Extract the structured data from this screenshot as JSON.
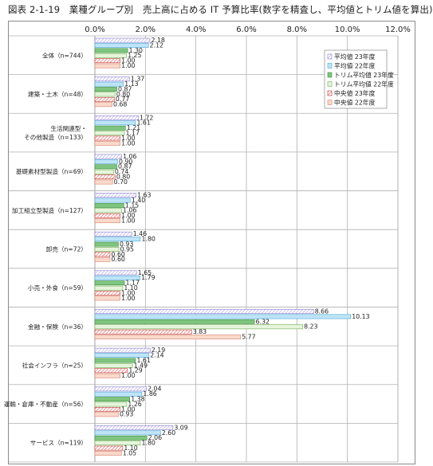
{
  "figure_title": "図表 2-1-19　業種グループ別　売上高に占める IT 予算比率(数字を精査し、平均値とトリム値を算出)",
  "colors": {
    "avg_2023": "#b3a6e6",
    "avg_2022": "#bfe4f7",
    "trim_2023": "#7fc47f",
    "trim_2022": "#e6f5dc",
    "median_2023": "#e85a5a",
    "median_2022": "#f9d9cc",
    "grid": "#b0b0b0"
  },
  "chart_data": {
    "type": "bar",
    "orientation": "horizontal",
    "xlim": [
      0,
      12
    ],
    "ticks": [
      "0.0%",
      "2.0%",
      "4.0%",
      "6.0%",
      "8.0%",
      "10.0%",
      "12.0%"
    ],
    "tick_values": [
      0,
      2,
      4,
      6,
      8,
      10,
      12
    ],
    "grid": true,
    "legend_position": "top-right",
    "categories": [
      "全体（n=744）",
      "建築・土木（n=48）",
      "生活関連型・その他製造（n=133）",
      "基礎素材型製造（n=69）",
      "加工組立型製造（n=127）",
      "卸売（n=72）",
      "小売・外食（n=59）",
      "金融・保険（n=36）",
      "社会インフラ（n=25）",
      "運輸・倉庫・不動産（n=56）",
      "サービス（n=119）"
    ],
    "category_lines": [
      [
        "全体（n=744）"
      ],
      [
        "建築・土木（n=48）"
      ],
      [
        "生活関連型・",
        "その他製造（n=133）"
      ],
      [
        "基礎素材型製造（n=69）"
      ],
      [
        "加工組立型製造（n=127）"
      ],
      [
        "卸売（n=72）"
      ],
      [
        "小売・外食（n=59）"
      ],
      [
        "金融・保険（n=36）"
      ],
      [
        "社会インフラ（n=25）"
      ],
      [
        "運輸・倉庫・不動産（n=56）"
      ],
      [
        "サービス（n=119）"
      ]
    ],
    "series": [
      {
        "name": "平均値 23年度",
        "color_key": "avg_2023",
        "values": [
          2.18,
          1.37,
          1.72,
          1.06,
          1.63,
          1.46,
          1.65,
          8.66,
          2.19,
          2.04,
          3.09
        ]
      },
      {
        "name": "平均値 22年度",
        "color_key": "avg_2022",
        "values": [
          2.12,
          1.13,
          1.61,
          0.9,
          1.4,
          1.8,
          1.79,
          10.13,
          2.14,
          1.86,
          2.6
        ]
      },
      {
        "name": "トリム平均値 23年度",
        "color_key": "trim_2023",
        "values": [
          1.3,
          0.87,
          1.21,
          0.87,
          1.15,
          0.93,
          1.17,
          6.32,
          1.61,
          1.38,
          2.06
        ]
      },
      {
        "name": "トリム平均値 22年度",
        "color_key": "trim_2022",
        "values": [
          1.25,
          0.8,
          1.17,
          0.74,
          1.06,
          0.95,
          1.1,
          8.23,
          1.49,
          1.26,
          1.8
        ]
      },
      {
        "name": "中央値 23年度",
        "color_key": "median_2023",
        "values": [
          1.0,
          0.77,
          1.0,
          0.8,
          1.0,
          0.6,
          1.0,
          3.83,
          1.29,
          1.0,
          1.1
        ]
      },
      {
        "name": "中央値 22年度",
        "color_key": "median_2022",
        "values": [
          1.0,
          0.68,
          1.0,
          0.7,
          1.0,
          0.6,
          1.0,
          5.77,
          1.0,
          0.93,
          1.05
        ]
      }
    ],
    "value_labels": [
      [
        "2.18",
        "2.12",
        "1.30",
        "1.25",
        "1.00",
        "1.00"
      ],
      [
        "1.37",
        "1.13",
        "0.87",
        "0.80",
        "0.77",
        "0.68"
      ],
      [
        "1.72",
        "1.61",
        "1.21",
        "1.17",
        "1.00",
        "1.00"
      ],
      [
        "1.06",
        "0.90",
        "0.87",
        "0.74",
        "0.80",
        "0.70"
      ],
      [
        "1.63",
        "1.40",
        "1.15",
        "1.06",
        "1.00",
        "1.00"
      ],
      [
        "1.46",
        "1.80",
        "0.93",
        "0.95",
        "0.60",
        "0.60"
      ],
      [
        "1.65",
        "1.79",
        "1.17",
        "1.10",
        "1.00",
        "1.00"
      ],
      [
        "8.66",
        "10.13",
        "6.32",
        "8.23",
        "3.83",
        "5.77"
      ],
      [
        "2.19",
        "2.14",
        "1.61",
        "1.49",
        "1.29",
        "1.00"
      ],
      [
        "2.04",
        "1.86",
        "1.38",
        "1.26",
        "1.00",
        "0.93"
      ],
      [
        "3.09",
        "2.60",
        "2.06",
        "1.80",
        "1.10",
        "1.05"
      ]
    ]
  }
}
